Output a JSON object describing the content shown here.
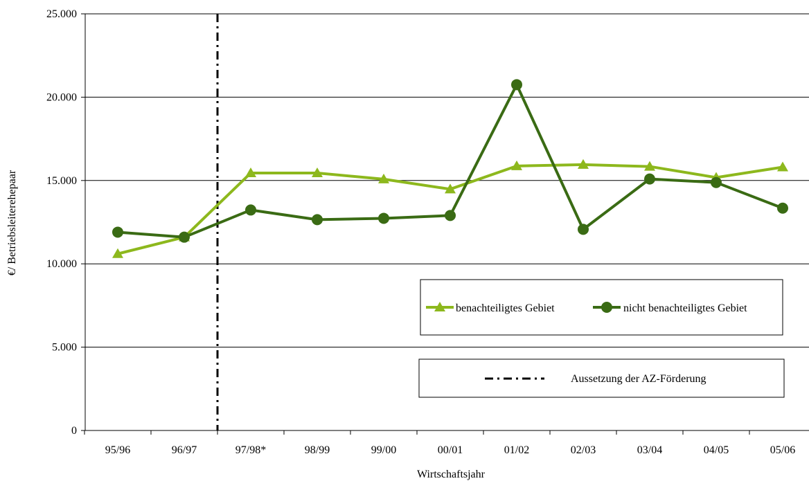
{
  "chart_data": {
    "type": "line",
    "categories": [
      "95/96",
      "96/97",
      "97/98*",
      "98/99",
      "99/00",
      "00/01",
      "01/02",
      "02/03",
      "03/04",
      "04/05",
      "05/06"
    ],
    "series": [
      {
        "name": "benachteiligtes Gebiet",
        "color": "#8db81d",
        "marker": "triangle",
        "values": [
          10600,
          11600,
          15450,
          15450,
          15080,
          14480,
          15870,
          15950,
          15840,
          15180,
          15800
        ]
      },
      {
        "name": "nicht benachteiligtes Gebiet",
        "color": "#3a6b14",
        "marker": "circle",
        "values": [
          11900,
          11600,
          13230,
          12650,
          12730,
          12900,
          20750,
          12070,
          15090,
          14880,
          13340
        ]
      }
    ],
    "ylim": [
      0,
      25000
    ],
    "yticks": [
      0,
      5000,
      10000,
      15000,
      20000,
      25000
    ],
    "ytick_labels": [
      "0",
      "5.000",
      "10.000",
      "15.000",
      "20.000",
      "25.000"
    ],
    "xlabel": "Wirtschaftsjahr",
    "ylabel": "€/ Betriebsleiterehepaar",
    "grid": "horizontal",
    "reference_line": {
      "position": "between 96/97 and 97/98*",
      "style": "dash-dot",
      "label": "Aussetzung der AZ-Förderung"
    },
    "legend_position": "lower-right"
  }
}
